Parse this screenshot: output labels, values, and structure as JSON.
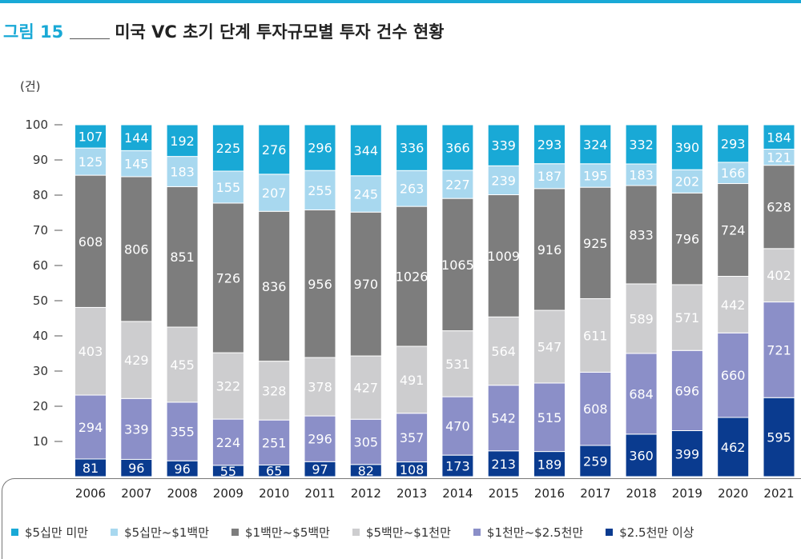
{
  "figure": {
    "number": "그림 15",
    "title": "미국 VC 초기 단계 투자규모별 투자 건수 현황"
  },
  "chart_data": {
    "type": "bar",
    "stacked": true,
    "normalized": true,
    "unit_label": "(건)",
    "ylim": [
      0,
      100
    ],
    "yticks": [
      "10",
      "20",
      "30",
      "40",
      "50",
      "60",
      "70",
      "80",
      "90",
      "100"
    ],
    "categories": [
      "2006",
      "2007",
      "2008",
      "2009",
      "2010",
      "2011",
      "2012",
      "2013",
      "2014",
      "2015",
      "2016",
      "2017",
      "2018",
      "2019",
      "2020",
      "2021"
    ],
    "legend_position": "bottom",
    "series": [
      {
        "name": "$2.5천만 이상",
        "color": "#0a3b8f",
        "values": [
          81,
          96,
          96,
          55,
          65,
          97,
          82,
          108,
          173,
          213,
          189,
          259,
          360,
          399,
          462,
          595
        ]
      },
      {
        "name": "$1천만~$2.5천만",
        "color": "#8b8fc8",
        "values": [
          294,
          339,
          355,
          224,
          251,
          296,
          305,
          357,
          470,
          542,
          515,
          608,
          684,
          696,
          660,
          721
        ]
      },
      {
        "name": "$5백만~$1천만",
        "color": "#cdcdcf",
        "values": [
          403,
          429,
          455,
          322,
          328,
          378,
          427,
          491,
          531,
          564,
          547,
          611,
          589,
          571,
          442,
          402
        ]
      },
      {
        "name": "$1백만~$5백만",
        "color": "#7d7d7d",
        "values": [
          608,
          806,
          851,
          726,
          836,
          956,
          970,
          1026,
          1065,
          1009,
          916,
          925,
          833,
          796,
          724,
          628
        ]
      },
      {
        "name": "$5십만~$1백만",
        "color": "#a8d8ef",
        "values": [
          125,
          145,
          183,
          155,
          207,
          255,
          245,
          263,
          227,
          239,
          187,
          195,
          183,
          202,
          166,
          121
        ]
      },
      {
        "name": "$5십만 미만",
        "color": "#19a9d6",
        "values": [
          107,
          144,
          192,
          225,
          276,
          296,
          344,
          336,
          366,
          339,
          293,
          324,
          332,
          390,
          293,
          184
        ]
      }
    ],
    "legend_order": [
      "$5십만 미만",
      "$5십만~$1백만",
      "$1백만~$5백만",
      "$5백만~$1천만",
      "$1천만~$2.5천만",
      "$2.5천만 이상"
    ]
  }
}
